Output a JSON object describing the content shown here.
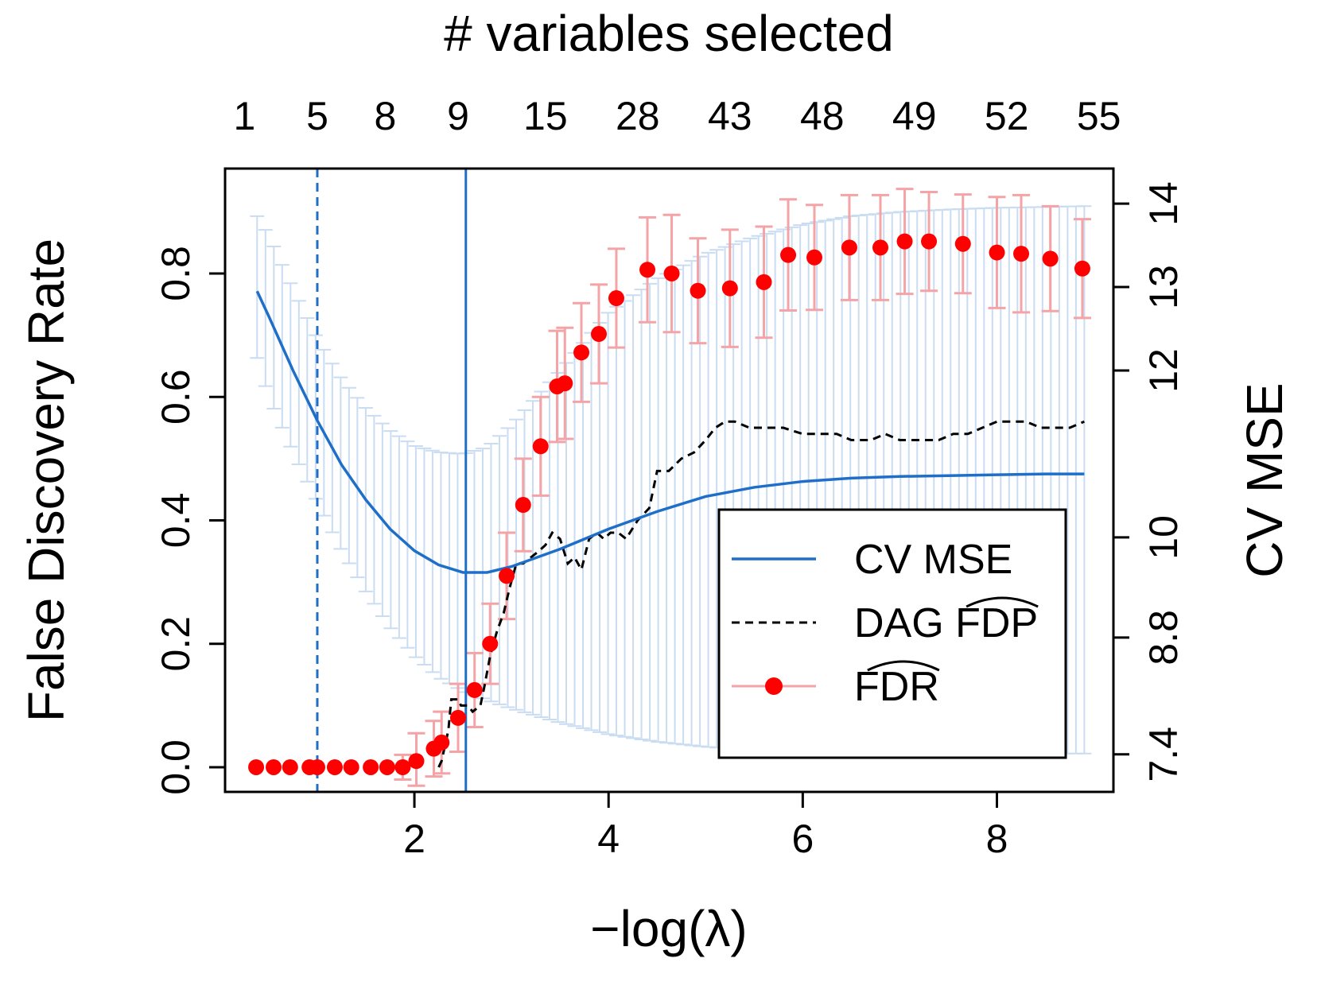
{
  "chart_data": {
    "type": "line",
    "top_axis_title": "# variables selected",
    "top_axis_ticks": [
      {
        "x": 0.25,
        "label": "1"
      },
      {
        "x": 1.0,
        "label": "5"
      },
      {
        "x": 1.7,
        "label": "8"
      },
      {
        "x": 2.45,
        "label": "9"
      },
      {
        "x": 3.35,
        "label": "15"
      },
      {
        "x": 4.3,
        "label": "28"
      },
      {
        "x": 5.25,
        "label": "43"
      },
      {
        "x": 6.2,
        "label": "48"
      },
      {
        "x": 7.15,
        "label": "49"
      },
      {
        "x": 8.1,
        "label": "52"
      },
      {
        "x": 9.05,
        "label": "55"
      }
    ],
    "xlabel": "−log(λ)",
    "xlim": [
      0.05,
      9.2
    ],
    "xticks": [
      2,
      4,
      6,
      8
    ],
    "ylabel_left": "False Discovery Rate",
    "ylim_left": [
      -0.04,
      0.97
    ],
    "yticks_left": [
      0.0,
      0.2,
      0.4,
      0.6,
      0.8
    ],
    "ytick_labels_left": [
      "0.0",
      "0.2",
      "0.4",
      "0.6",
      "0.8"
    ],
    "ylabel_right": "CV MSE",
    "ylim_right": [
      6.95,
      14.42
    ],
    "yticks_right": [
      7.4,
      8.8,
      10,
      12,
      13,
      14
    ],
    "ytick_labels_right": [
      "7.4",
      "8.8",
      "10",
      "12",
      "13",
      "14"
    ],
    "vline_dashed_x": 1.0,
    "vline_solid_x": 2.53,
    "cv_mse_curve": {
      "x": [
        0.38,
        0.5,
        0.75,
        1.0,
        1.25,
        1.5,
        1.75,
        2.0,
        2.25,
        2.5,
        2.75,
        3.0,
        3.5,
        4.0,
        4.5,
        5.0,
        5.5,
        6.0,
        6.5,
        7.0,
        7.5,
        8.0,
        8.5,
        8.9
      ],
      "y": [
        12.95,
        12.65,
        12.0,
        11.4,
        10.87,
        10.45,
        10.1,
        9.84,
        9.67,
        9.58,
        9.58,
        9.65,
        9.86,
        10.1,
        10.31,
        10.49,
        10.6,
        10.67,
        10.71,
        10.73,
        10.74,
        10.75,
        10.76,
        10.76
      ],
      "upper": [
        13.85,
        13.62,
        12.98,
        12.38,
        11.9,
        11.55,
        11.28,
        11.1,
        11.02,
        11.0,
        11.08,
        11.35,
        12.0,
        12.7,
        13.1,
        13.4,
        13.6,
        13.75,
        13.85,
        13.9,
        13.93,
        13.95,
        13.96,
        13.97
      ],
      "lower": [
        12.15,
        11.68,
        11.02,
        10.42,
        9.84,
        9.35,
        8.92,
        8.58,
        8.32,
        8.16,
        8.05,
        7.95,
        7.78,
        7.64,
        7.55,
        7.49,
        7.45,
        7.43,
        7.42,
        7.41,
        7.41,
        7.41,
        7.41,
        7.41
      ]
    },
    "dag_fdp": {
      "x": [
        2.25,
        2.28,
        2.35,
        2.38,
        2.45,
        2.48,
        2.55,
        2.6,
        2.68,
        2.72,
        2.78,
        2.85,
        2.92,
        2.98,
        3.05,
        3.12,
        3.2,
        3.28,
        3.35,
        3.42,
        3.5,
        3.58,
        3.65,
        3.72,
        3.8,
        3.88,
        3.95,
        4.02,
        4.1,
        4.18,
        4.3,
        4.42,
        4.5,
        4.62,
        4.75,
        4.88,
        5.0,
        5.1,
        5.2,
        5.3,
        5.45,
        5.6,
        5.8,
        6.0,
        6.2,
        6.35,
        6.5,
        6.7,
        6.85,
        7.0,
        7.2,
        7.4,
        7.55,
        7.7,
        7.85,
        8.0,
        8.15,
        8.3,
        8.45,
        8.6,
        8.75,
        8.9
      ],
      "y": [
        0.0,
        0.01,
        0.06,
        0.11,
        0.11,
        0.1,
        0.1,
        0.09,
        0.1,
        0.13,
        0.18,
        0.22,
        0.25,
        0.29,
        0.33,
        0.33,
        0.34,
        0.35,
        0.36,
        0.38,
        0.37,
        0.33,
        0.34,
        0.32,
        0.37,
        0.38,
        0.37,
        0.38,
        0.38,
        0.37,
        0.4,
        0.42,
        0.48,
        0.48,
        0.5,
        0.51,
        0.53,
        0.55,
        0.56,
        0.56,
        0.55,
        0.55,
        0.55,
        0.54,
        0.54,
        0.54,
        0.53,
        0.53,
        0.54,
        0.53,
        0.53,
        0.53,
        0.54,
        0.54,
        0.55,
        0.56,
        0.56,
        0.56,
        0.55,
        0.55,
        0.55,
        0.56
      ]
    },
    "fdr_points": {
      "x": [
        0.37,
        0.55,
        0.72,
        0.92,
        1.0,
        1.18,
        1.35,
        1.55,
        1.72,
        1.88,
        2.02,
        2.2,
        2.28,
        2.45,
        2.62,
        2.78,
        2.95,
        3.12,
        3.3,
        3.47,
        3.55,
        3.72,
        3.9,
        4.08,
        4.4,
        4.65,
        4.92,
        5.25,
        5.6,
        5.85,
        6.12,
        6.48,
        6.8,
        7.05,
        7.3,
        7.65,
        8.0,
        8.25,
        8.55,
        8.88
      ],
      "y": [
        0.0,
        0.0,
        0.0,
        0.0,
        0.0,
        0.0,
        0.0,
        0.0,
        0.0,
        0.0,
        0.01,
        0.03,
        0.04,
        0.08,
        0.125,
        0.2,
        0.31,
        0.425,
        0.52,
        0.617,
        0.622,
        0.672,
        0.702,
        0.76,
        0.806,
        0.8,
        0.772,
        0.776,
        0.786,
        0.83,
        0.826,
        0.842,
        0.842,
        0.852,
        0.852,
        0.848,
        0.834,
        0.832,
        0.824,
        0.808
      ],
      "err": [
        0.0,
        0.0,
        0.0,
        0.0,
        0.0,
        0.0,
        0.0,
        0.0,
        0.0,
        0.02,
        0.045,
        0.045,
        0.05,
        0.055,
        0.06,
        0.065,
        0.07,
        0.075,
        0.08,
        0.09,
        0.09,
        0.08,
        0.08,
        0.08,
        0.085,
        0.095,
        0.085,
        0.095,
        0.09,
        0.09,
        0.085,
        0.085,
        0.085,
        0.085,
        0.08,
        0.08,
        0.09,
        0.095,
        0.085,
        0.08
      ]
    },
    "legend": {
      "position": "bottom-right",
      "entries": [
        {
          "label": "CV MSE",
          "style": "line"
        },
        {
          "label": "DAG FDP",
          "style": "dashed",
          "hat": "FDP"
        },
        {
          "label": "FDR",
          "style": "point",
          "hat": "FDR"
        }
      ]
    },
    "colors": {
      "cv_line": "#1f6fc8",
      "cv_band": "#c9dcf2",
      "fdr_points": "#ff0000",
      "fdr_errorbar": "#f4a3a6",
      "dag_line": "#000000",
      "vlines": "#1f6fc8"
    }
  }
}
